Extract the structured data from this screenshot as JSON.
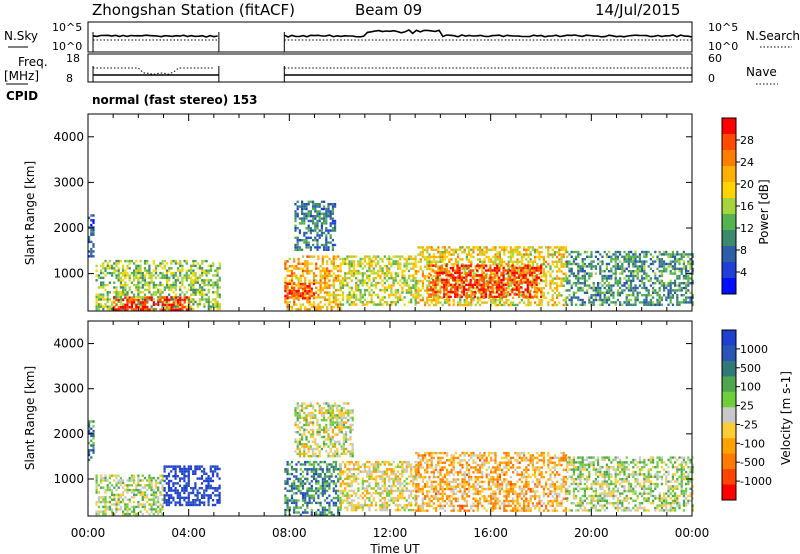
{
  "header": {
    "station": "Zhongshan Station (fitACF)",
    "beam": "Beam 09",
    "date": "14/Jul/2015"
  },
  "top_panels": {
    "nsky_label": "N.Sky",
    "nsky_ticks": [
      "10^5",
      "10^0"
    ],
    "nsearch_label": "N.Search",
    "nsearch_ticks": [
      "10^5",
      "10^0"
    ],
    "freq_label": "Freq.",
    "freq_unit": "[MHz]",
    "freq_ticks": [
      "18",
      "8"
    ],
    "nave_label": "Nave",
    "nave_ticks": [
      "60",
      "0"
    ],
    "cpid_label": "CPID",
    "cpid_text": "normal (fast stereo) 153"
  },
  "axes": {
    "ylabel": "Slant Range [km]",
    "yticks": [
      "4000",
      "3000",
      "2000",
      "1000"
    ],
    "xlabel": "Time UT",
    "xticks": [
      "00:00",
      "04:00",
      "08:00",
      "12:00",
      "16:00",
      "20:00",
      "00:00"
    ]
  },
  "power_colorbar": {
    "label": "Power [dB]",
    "ticks": [
      "28",
      "24",
      "20",
      "16",
      "12",
      "8",
      "4"
    ],
    "colors": [
      "#ff0000",
      "#ff4a00",
      "#ff7d00",
      "#ffb000",
      "#ffd400",
      "#a6d43c",
      "#54b24f",
      "#3c8a6e",
      "#2c5fa8",
      "#1f3fd6",
      "#0010ff"
    ]
  },
  "velocity_colorbar": {
    "label": "Velocity [m s-1]",
    "ticks": [
      "1000",
      "500",
      "100",
      "25",
      "-25",
      "-100",
      "-500",
      "-1000"
    ],
    "colors": [
      "#1f3fcf",
      "#2b56b8",
      "#2f7a77",
      "#4ea64e",
      "#6fcf3a",
      "#c8c8c8",
      "#ffcc33",
      "#ffa200",
      "#ff7a00",
      "#ff4400",
      "#ff0000"
    ]
  },
  "chart_data": [
    {
      "type": "heatmap",
      "name": "Power",
      "x_range_hours": [
        0,
        24
      ],
      "ylim": [
        180,
        4500
      ],
      "xticks": [
        "00:00",
        "04:00",
        "08:00",
        "12:00",
        "16:00",
        "20:00",
        "00:00"
      ],
      "yticks": [
        1000,
        2000,
        3000,
        4000
      ],
      "colorbar_range_db": [
        0,
        30
      ],
      "data_gap_hours": [
        5.2,
        7.8
      ],
      "echo_regions": [
        {
          "t": [
            0.0,
            0.2
          ],
          "range_km": [
            1400,
            2300
          ],
          "power_db": 6
        },
        {
          "t": [
            0.3,
            5.2
          ],
          "range_km": [
            200,
            1300
          ],
          "power_db": 14
        },
        {
          "t": [
            1.0,
            4.0
          ],
          "range_km": [
            200,
            500
          ],
          "power_db": 27
        },
        {
          "t": [
            7.8,
            10.0
          ],
          "range_km": [
            200,
            1400
          ],
          "power_db": 20
        },
        {
          "t": [
            7.8,
            9.0
          ],
          "range_km": [
            450,
            800
          ],
          "power_db": 28
        },
        {
          "t": [
            8.2,
            9.8
          ],
          "range_km": [
            1500,
            2600
          ],
          "power_db": 8
        },
        {
          "t": [
            10.0,
            13.0
          ],
          "range_km": [
            300,
            1400
          ],
          "power_db": 16
        },
        {
          "t": [
            13.0,
            19.0
          ],
          "range_km": [
            300,
            1600
          ],
          "power_db": 18
        },
        {
          "t": [
            13.5,
            18.0
          ],
          "range_km": [
            500,
            1200
          ],
          "power_db": 27
        },
        {
          "t": [
            19.0,
            24.0
          ],
          "range_km": [
            300,
            1500
          ],
          "power_db": 10
        }
      ]
    },
    {
      "type": "heatmap",
      "name": "Velocity",
      "x_range_hours": [
        0,
        24
      ],
      "ylim": [
        180,
        4500
      ],
      "xticks": [
        "00:00",
        "04:00",
        "08:00",
        "12:00",
        "16:00",
        "20:00",
        "00:00"
      ],
      "yticks": [
        1000,
        2000,
        3000,
        4000
      ],
      "colorbar_range_ms": [
        -1000,
        1000
      ],
      "data_gap_hours": [
        5.2,
        7.8
      ],
      "echo_regions": [
        {
          "t": [
            0.0,
            0.2
          ],
          "range_km": [
            1400,
            2300
          ],
          "velocity_ms": 500
        },
        {
          "t": [
            0.3,
            3.0
          ],
          "range_km": [
            200,
            1100
          ],
          "velocity_ms": 100
        },
        {
          "t": [
            3.0,
            5.2
          ],
          "range_km": [
            400,
            1300
          ],
          "velocity_ms": 1000
        },
        {
          "t": [
            7.8,
            10.0
          ],
          "range_km": [
            200,
            1400
          ],
          "velocity_ms": 500
        },
        {
          "t": [
            8.2,
            10.5
          ],
          "range_km": [
            1500,
            2700
          ],
          "velocity_ms": 0
        },
        {
          "t": [
            10.0,
            13.0
          ],
          "range_km": [
            300,
            1400
          ],
          "velocity_ms": -100
        },
        {
          "t": [
            13.0,
            19.0
          ],
          "range_km": [
            300,
            1600
          ],
          "velocity_ms": -300
        },
        {
          "t": [
            19.0,
            24.0
          ],
          "range_km": [
            300,
            1500
          ],
          "velocity_ms": 100
        }
      ]
    }
  ]
}
